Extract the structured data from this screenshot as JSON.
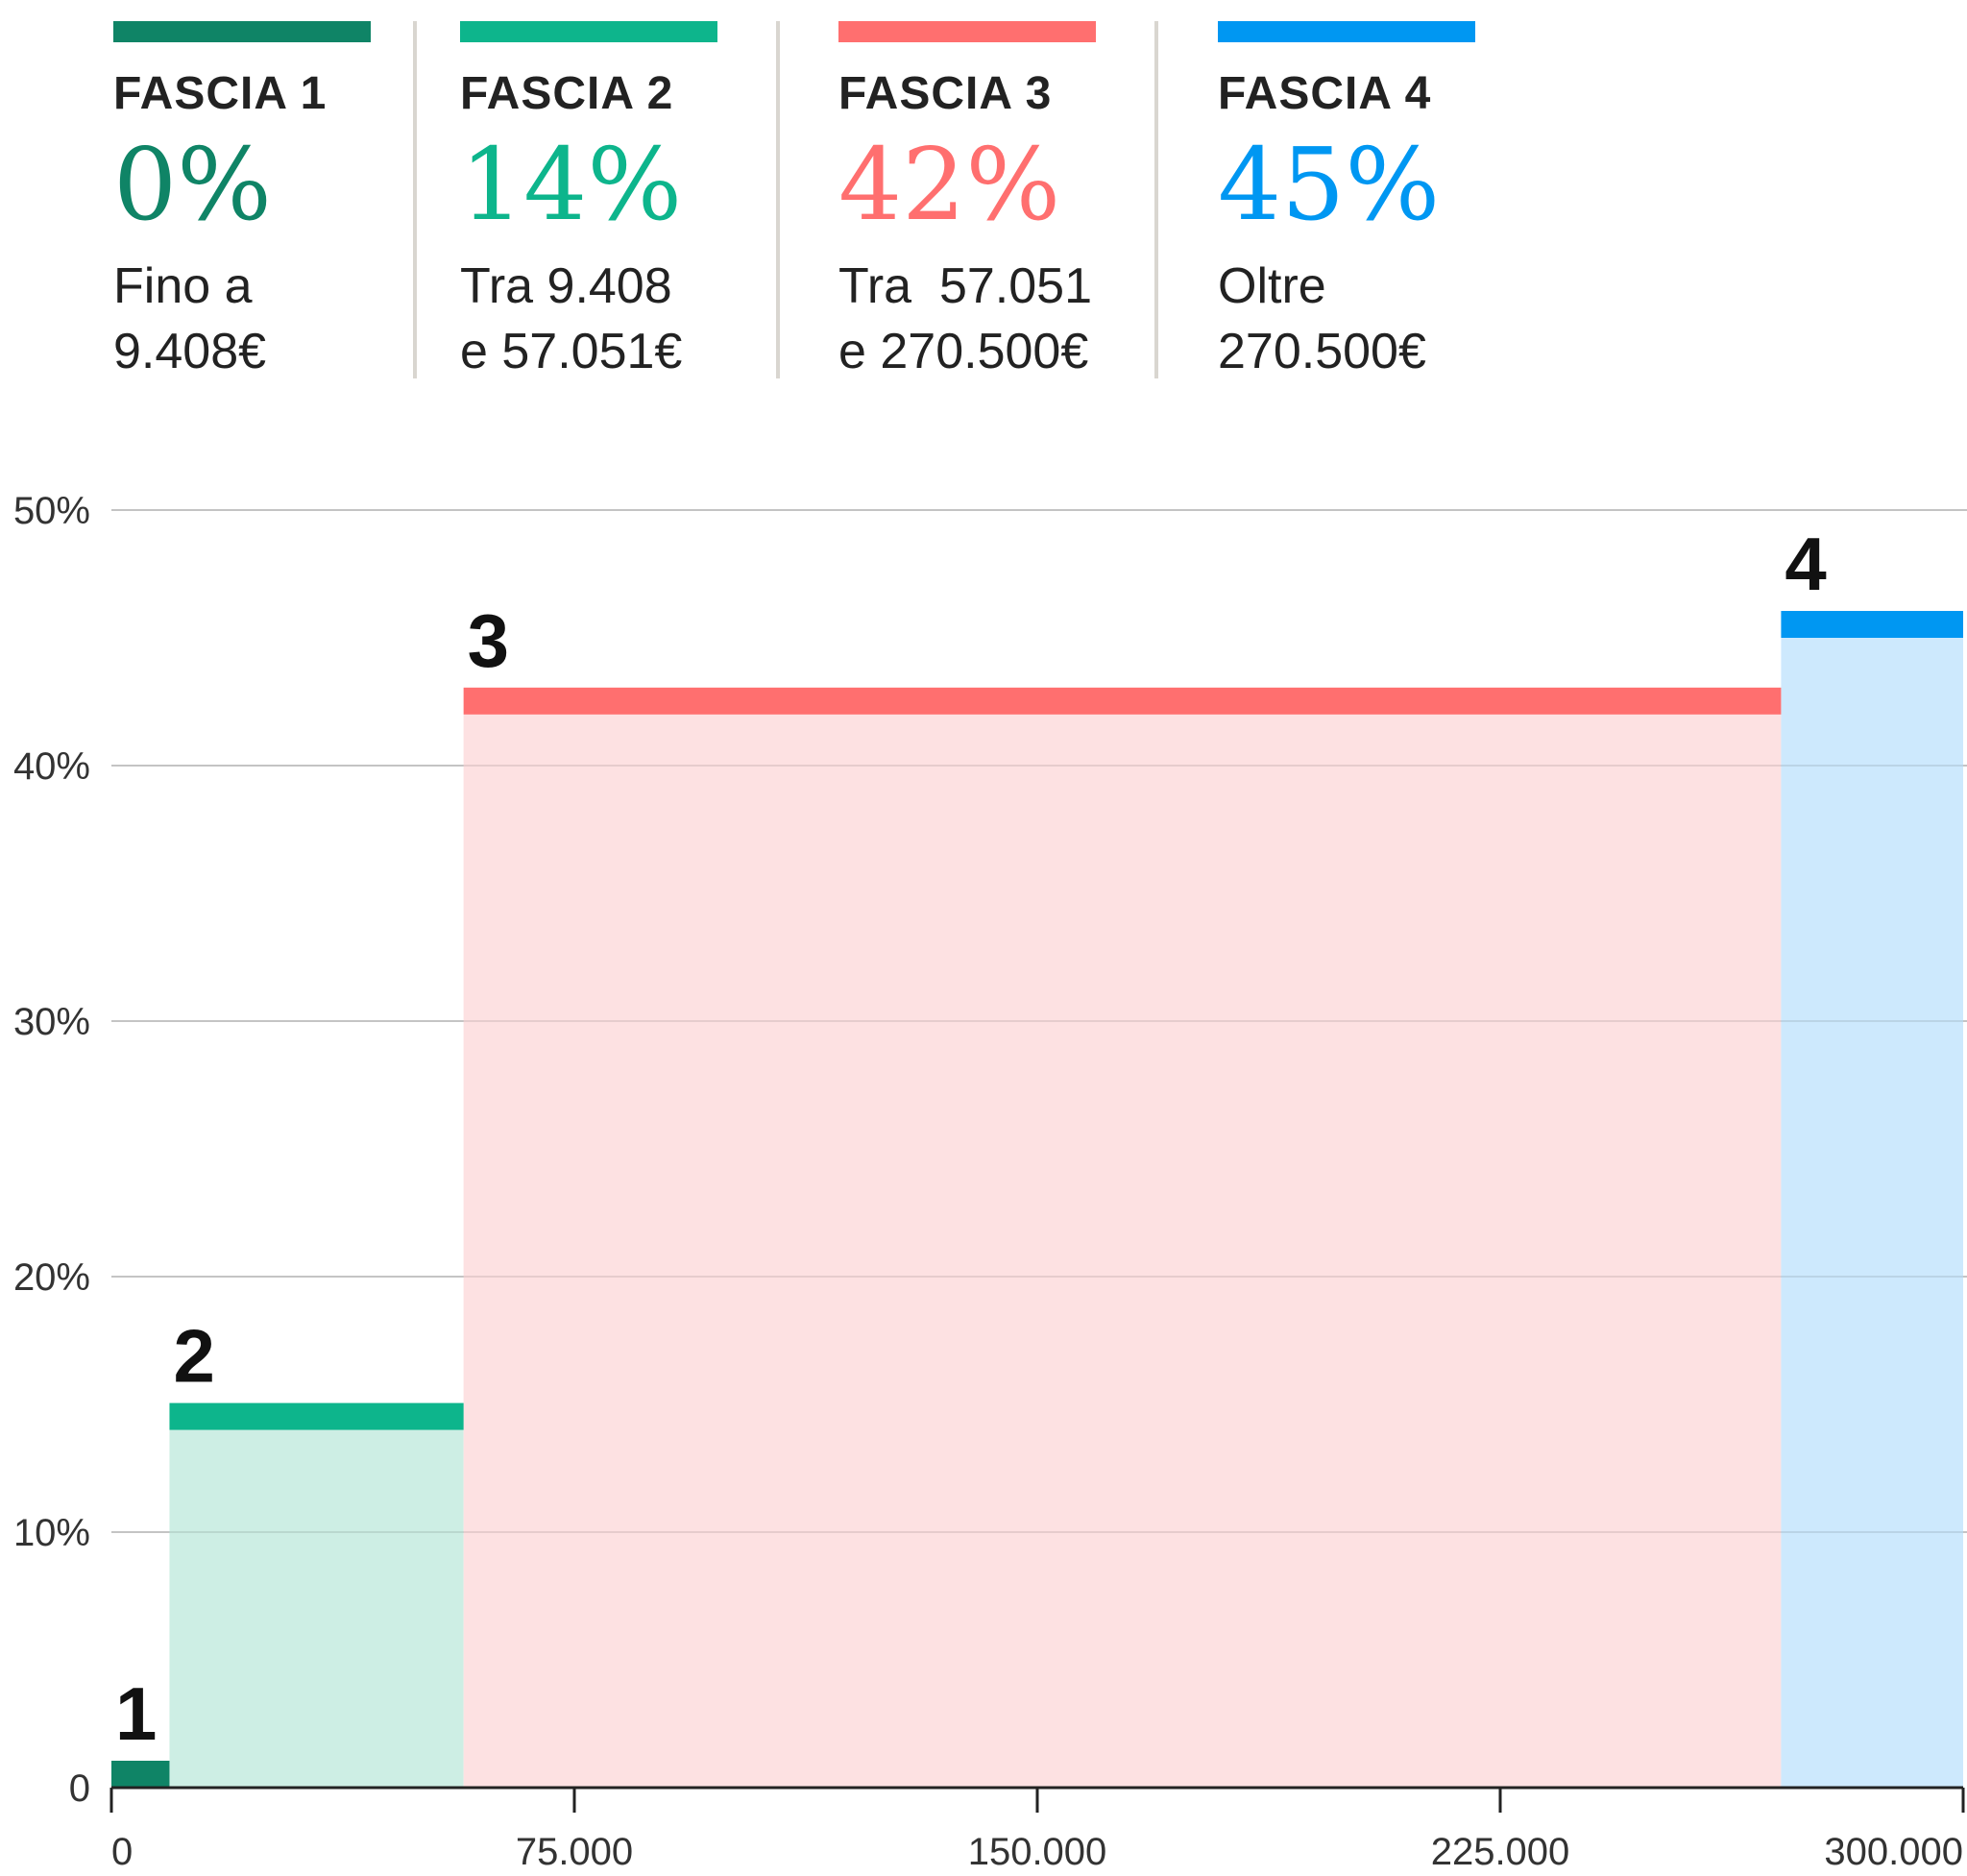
{
  "legend": [
    {
      "title": "FASCIA 1",
      "rate": "0%",
      "desc_line1": "Fino a",
      "desc_line2": "9.408€",
      "color": "#0f8466"
    },
    {
      "title": "FASCIA 2",
      "rate": "14%",
      "desc_line1": "Tra 9.408",
      "desc_line2": "e 57.051€",
      "color": "#0db58c"
    },
    {
      "title": "FASCIA 3",
      "rate": "42%",
      "desc_line1": "Tra  57.051",
      "desc_line2": "e 270.500€",
      "color": "#ff6f6f"
    },
    {
      "title": "FASCIA 4",
      "rate": "45%",
      "desc_line1": "Oltre",
      "desc_line2": "270.500€",
      "color": "#0097f2"
    }
  ],
  "chart_data": {
    "type": "area",
    "title": "",
    "xlabel": "",
    "ylabel": "",
    "xlim": [
      0,
      300000
    ],
    "ylim": [
      0,
      50
    ],
    "grid": true,
    "y_ticks": [
      {
        "value": 0,
        "label": "0"
      },
      {
        "value": 10,
        "label": "10%"
      },
      {
        "value": 20,
        "label": "20%"
      },
      {
        "value": 30,
        "label": "30%"
      },
      {
        "value": 40,
        "label": "40%"
      },
      {
        "value": 50,
        "label": "50%"
      }
    ],
    "x_ticks": [
      {
        "value": 0,
        "label": "0"
      },
      {
        "value": 75000,
        "label": "75.000"
      },
      {
        "value": 150000,
        "label": "150.000"
      },
      {
        "value": 225000,
        "label": "225.000"
      },
      {
        "value": 300000,
        "label": "300.000"
      }
    ],
    "bands": [
      {
        "label": "1",
        "x_start": 0,
        "x_end": 9408,
        "rate": 0,
        "color": "#0f8466",
        "fill": "#0f8466"
      },
      {
        "label": "2",
        "x_start": 9408,
        "x_end": 57051,
        "rate": 14,
        "color": "#0db58c",
        "fill": "#cdeee4"
      },
      {
        "label": "3",
        "x_start": 57051,
        "x_end": 270500,
        "rate": 42,
        "color": "#ff6f6f",
        "fill": "#fde1e2"
      },
      {
        "label": "4",
        "x_start": 270500,
        "x_end": 300000,
        "rate": 45,
        "color": "#0097f2",
        "fill": "#cde9fd"
      }
    ]
  }
}
